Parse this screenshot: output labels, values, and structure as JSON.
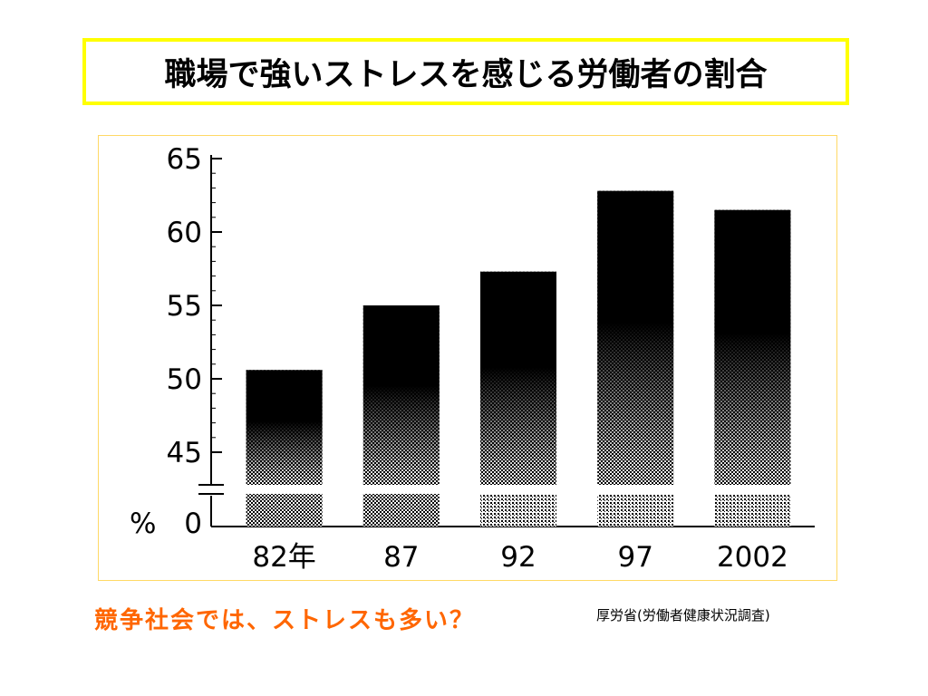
{
  "title": "職場で強いストレスを感じる労働者の割合",
  "caption": "競争社会では、ストレスも多い？",
  "source": "厚労省(労働者健康状況調査)",
  "colors": {
    "title_border": "#ffff00",
    "caption": "#ff6600",
    "frame_border": "#ffd966",
    "bar": "#000000"
  },
  "chart_data": {
    "type": "bar",
    "categories": [
      "82年",
      "87",
      "92",
      "97",
      "2002"
    ],
    "values": [
      50.6,
      55.0,
      57.3,
      62.8,
      61.5
    ],
    "y_unit_label": "%",
    "y_ticks": [
      0,
      45,
      50,
      55,
      60,
      65
    ],
    "ylim": [
      45,
      65
    ],
    "y_axis_break": true,
    "grid": false,
    "legend": "none"
  }
}
